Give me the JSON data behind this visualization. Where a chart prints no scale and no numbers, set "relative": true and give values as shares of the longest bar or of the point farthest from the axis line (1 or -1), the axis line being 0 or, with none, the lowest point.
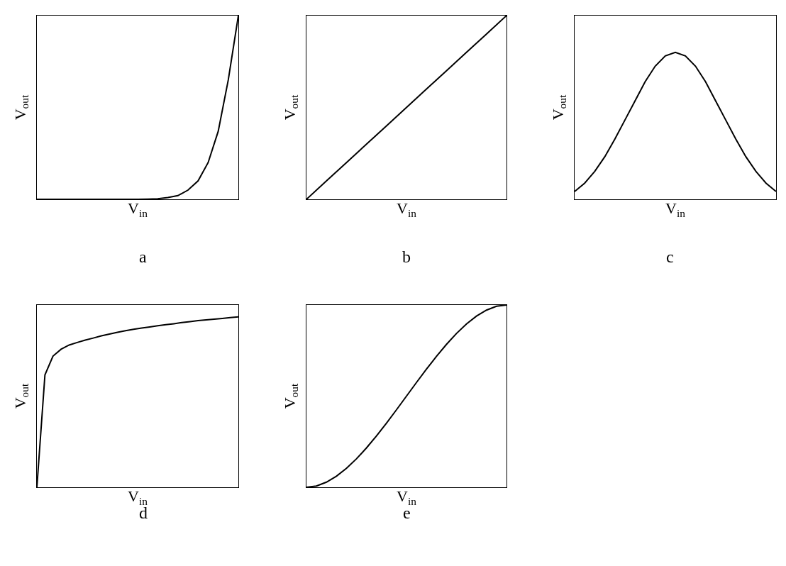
{
  "chart_data": [
    {
      "type": "line",
      "relative": true,
      "title": "a",
      "xlabel": "V$_{in}$",
      "ylabel": "V$_{out}$",
      "tick_labels": false,
      "marker": "none",
      "line_style": "solid",
      "categories": [
        null,
        null,
        null,
        null,
        null,
        null,
        null,
        null,
        null,
        null,
        null,
        null,
        null,
        null,
        null,
        null,
        null,
        null,
        null,
        null,
        null
      ],
      "series": [
        {
          "color": "#000000",
          "values": [
            0,
            0,
            0,
            0,
            0,
            0,
            0,
            0,
            0,
            0,
            0,
            0.001,
            0.003,
            0.01,
            0.02,
            0.05,
            0.1,
            0.2,
            0.37,
            0.65,
            1
          ]
        }
      ]
    },
    {
      "type": "line",
      "relative": true,
      "title": "b",
      "xlabel": "V$_{in}$",
      "ylabel": "V$_{out}$",
      "tick_labels": false,
      "marker": "none",
      "line_style": "solid",
      "categories": [
        null,
        null,
        null,
        null,
        null,
        null,
        null,
        null,
        null,
        null,
        null
      ],
      "series": [
        {
          "color": "#000000",
          "values": [
            0,
            0.1,
            0.2,
            0.3,
            0.4,
            0.5,
            0.6,
            0.7,
            0.8,
            0.9,
            1
          ]
        }
      ]
    },
    {
      "type": "line",
      "relative": true,
      "title": "c",
      "xlabel": "V$_{in}$",
      "ylabel": "V$_{out}$",
      "tick_labels": false,
      "marker": "none",
      "line_style": "solid",
      "categories": [
        null,
        null,
        null,
        null,
        null,
        null,
        null,
        null,
        null,
        null,
        null,
        null,
        null,
        null,
        null,
        null,
        null,
        null,
        null,
        null,
        null
      ],
      "series": [
        {
          "color": "#000000",
          "values": [
            0.053,
            0.11,
            0.19,
            0.29,
            0.41,
            0.54,
            0.67,
            0.8,
            0.906,
            0.976,
            1,
            0.976,
            0.906,
            0.8,
            0.67,
            0.54,
            0.41,
            0.29,
            0.19,
            0.11,
            0.053
          ]
        }
      ]
    },
    {
      "type": "line",
      "relative": true,
      "title": "d",
      "xlabel": "V$_{in}$",
      "ylabel": "V$_{out}$",
      "tick_labels": false,
      "marker": "none",
      "line_style": "solid",
      "categories": [
        null,
        null,
        null,
        null,
        null,
        null,
        null,
        null,
        null,
        null,
        null,
        null,
        null,
        null,
        null,
        null,
        null,
        null,
        null,
        null,
        null,
        null,
        null,
        null,
        null,
        null
      ],
      "series": [
        {
          "color": "#000000",
          "values": [
            0,
            0.66,
            0.77,
            0.81,
            0.835,
            0.85,
            0.864,
            0.876,
            0.889,
            0.899,
            0.91,
            0.919,
            0.927,
            0.935,
            0.941,
            0.948,
            0.954,
            0.96,
            0.967,
            0.972,
            0.978,
            0.983,
            0.987,
            0.991,
            0.996,
            1
          ]
        }
      ]
    },
    {
      "type": "line",
      "relative": true,
      "title": "e",
      "xlabel": "V$_{in}$",
      "ylabel": "V$_{out}$",
      "tick_labels": false,
      "marker": "none",
      "line_style": "solid",
      "categories": [
        null,
        null,
        null,
        null,
        null,
        null,
        null,
        null,
        null,
        null,
        null,
        null,
        null,
        null,
        null,
        null,
        null,
        null,
        null,
        null,
        null
      ],
      "series": [
        {
          "color": "#000000",
          "values": [
            0,
            0.007,
            0.028,
            0.061,
            0.104,
            0.156,
            0.216,
            0.282,
            0.352,
            0.425,
            0.5,
            0.575,
            0.648,
            0.718,
            0.784,
            0.844,
            0.896,
            0.939,
            0.972,
            0.993,
            1
          ]
        }
      ]
    }
  ]
}
